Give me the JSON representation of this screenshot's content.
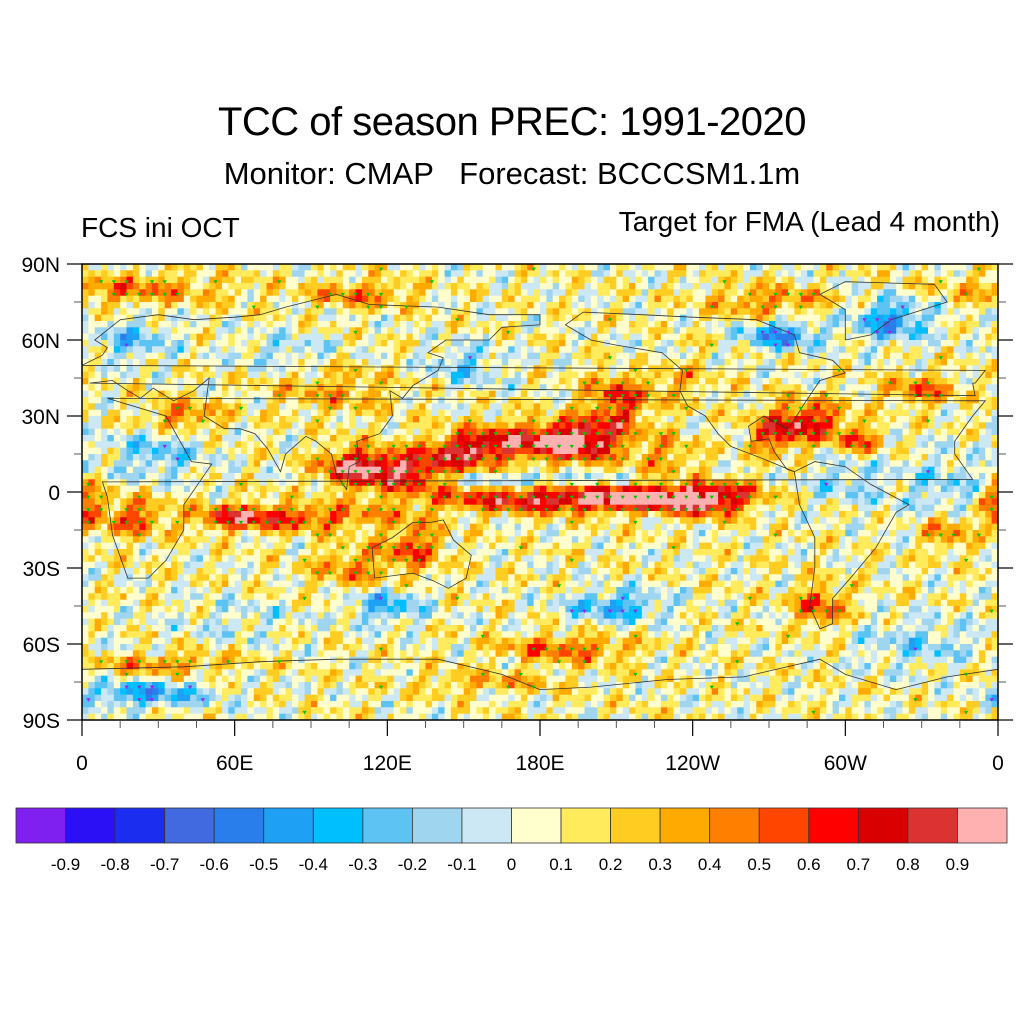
{
  "header": {
    "title": "TCC of season PREC: 1991-2020",
    "subtitle": "Monitor: CMAP   Forecast: BCCCSM1.1m",
    "left_label": "FCS ini OCT",
    "right_label": "Target for FMA (Lead 4 month)"
  },
  "chart_data": {
    "type": "heatmap",
    "title": "TCC of season PREC: 1991-2020",
    "subtitle": "Monitor: CMAP   Forecast: BCCCSM1.1m",
    "left_string": "FCS ini OCT",
    "right_string": "Target for FMA (Lead 4 month)",
    "projection": "cylindrical-equidistant",
    "lon_range": [
      0,
      360
    ],
    "lat_range": [
      -90,
      90
    ],
    "x_ticks": [
      "0",
      "60E",
      "120E",
      "180E",
      "120W",
      "60W",
      "0"
    ],
    "x_tick_values": [
      0,
      60,
      120,
      180,
      240,
      300,
      360
    ],
    "y_ticks": [
      "90N",
      "60N",
      "30N",
      "0",
      "30S",
      "60S",
      "90S"
    ],
    "y_tick_values": [
      90,
      60,
      30,
      0,
      -30,
      -60,
      -90
    ],
    "colorbar": {
      "labels": [
        "-0.9",
        "-0.8",
        "-0.7",
        "-0.6",
        "-0.5",
        "-0.4",
        "-0.3",
        "-0.2",
        "-0.1",
        "0",
        "0.1",
        "0.2",
        "0.3",
        "0.4",
        "0.5",
        "0.6",
        "0.7",
        "0.8",
        "0.9"
      ],
      "levels": [
        -0.9,
        -0.8,
        -0.7,
        -0.6,
        -0.5,
        -0.4,
        -0.3,
        -0.2,
        -0.1,
        0,
        0.1,
        0.2,
        0.3,
        0.4,
        0.5,
        0.6,
        0.7,
        0.8,
        0.9
      ],
      "colors": [
        "#8020f0",
        "#2b0ff5",
        "#1b2ef0",
        "#4169e0",
        "#2a7eec",
        "#1ea0f5",
        "#00bfff",
        "#5cc3f2",
        "#a0d5f0",
        "#cde8f5",
        "#fffecc",
        "#ffeb5c",
        "#ffcc22",
        "#ffaa00",
        "#ff7f00",
        "#ff4500",
        "#ff0000",
        "#d80000",
        "#dc3232",
        "#ffb0b0"
      ],
      "placement": "bottom"
    },
    "stippling": {
      "positive_significant_color": "#00c800",
      "negative_significant_color": "#a020f0"
    },
    "features": [
      {
        "region": "Equatorial central-east Pacific (0-5S, 160E-100W)",
        "value_range": [
          0.6,
          0.8
        ]
      },
      {
        "region": "Western Pacific / Maritime Continent (5-15N, 100-140E)",
        "value_range": [
          0.6,
          0.8
        ]
      },
      {
        "region": "North-central Pacific band (15-25N, 150E-160W)",
        "value_range": [
          0.5,
          0.8
        ]
      },
      {
        "region": "South Indian Ocean band (10S, 50-120E)",
        "value_range": [
          0.4,
          0.6
        ]
      },
      {
        "region": "Southeast US / Gulf of Mexico",
        "value_range": [
          0.4,
          0.7
        ]
      },
      {
        "region": "Hudson Bay",
        "value_range": [
          -0.6,
          -0.3
        ]
      },
      {
        "region": "Greenland",
        "value_range": [
          -0.6,
          -0.3
        ]
      },
      {
        "region": "Southern Ocean south of Africa (75S)",
        "value_range": [
          -0.6,
          -0.3
        ]
      }
    ]
  }
}
